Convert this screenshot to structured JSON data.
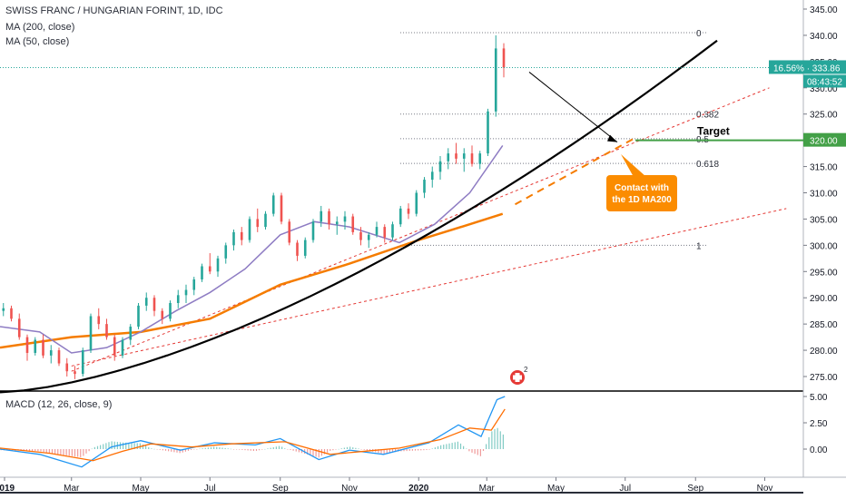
{
  "header": {
    "title": "SWISS FRANC / HUNGARIAN FORINT, 1D, IDC",
    "ma200_label": "MA (200, close)",
    "ma50_label": "MA (50, close)",
    "macd_label": "MACD (12, 26, close, 9)"
  },
  "price_axis": {
    "ticks": [
      "345.00",
      "340.00",
      "335.00",
      "330.00",
      "325.00",
      "320.00",
      "315.00",
      "310.00",
      "305.00",
      "300.00",
      "295.00",
      "290.00",
      "285.00",
      "280.00",
      "275.00"
    ],
    "last_price_badge": "16.56% · 333.86",
    "countdown_badge": "08:43:52",
    "target_badge": "320.00"
  },
  "macd_axis": {
    "ticks": [
      "5.00",
      "2.50",
      "0.00"
    ]
  },
  "time_axis": {
    "labels": [
      "2019",
      "Mar",
      "May",
      "Jul",
      "Sep",
      "Nov",
      "2020",
      "Mar",
      "May",
      "Jul",
      "Sep",
      "Nov"
    ]
  },
  "fib_levels": [
    {
      "label": "0",
      "value": 340.5
    },
    {
      "label": "0.382",
      "value": 325.0
    },
    {
      "label": "0.5",
      "value": 320.3
    },
    {
      "label": "0.618",
      "value": 315.6
    },
    {
      "label": "1",
      "value": 300.0
    }
  ],
  "annotations": {
    "target_label": "Target",
    "callout_text": [
      "Contact with",
      "the 1D MA200"
    ],
    "event_badge": "2"
  },
  "colors": {
    "up": "#26a69a",
    "down": "#ef5350",
    "ma200": "#f57c00",
    "ma50": "#8e7cc3",
    "curve": "#000000",
    "channel": "#e53935",
    "target": "#43a047",
    "callout": "#fb8c00",
    "last_price": "#26a69a",
    "macd": "#2196f3",
    "signal": "#ff6d00"
  },
  "chart_data": {
    "type": "candlestick",
    "y_range": [
      272,
      347
    ],
    "x_range": [
      "2018-12-28",
      "2020-12-05"
    ],
    "series": [
      {
        "name": "MA (200, close)",
        "points": [
          [
            "2018-12-28",
            280.5
          ],
          [
            "2019-03-01",
            282.5
          ],
          [
            "2019-05-01",
            283.5
          ],
          [
            "2019-07-01",
            286.0
          ],
          [
            "2019-09-01",
            292.5
          ],
          [
            "2019-11-01",
            296.5
          ],
          [
            "2020-01-01",
            301.0
          ],
          [
            "2020-02-15",
            304.0
          ],
          [
            "2020-03-15",
            306.0
          ]
        ]
      },
      {
        "name": "MA (50, close)",
        "points": [
          [
            "2018-12-28",
            284.5
          ],
          [
            "2019-02-01",
            283.5
          ],
          [
            "2019-03-01",
            279.5
          ],
          [
            "2019-04-01",
            280.5
          ],
          [
            "2019-05-01",
            283.5
          ],
          [
            "2019-06-01",
            287.5
          ],
          [
            "2019-07-01",
            291.0
          ],
          [
            "2019-08-01",
            295.5
          ],
          [
            "2019-09-01",
            302.0
          ],
          [
            "2019-10-01",
            304.5
          ],
          [
            "2019-11-01",
            303.5
          ],
          [
            "2019-12-15",
            300.5
          ],
          [
            "2020-01-15",
            304.0
          ],
          [
            "2020-02-15",
            310.0
          ],
          [
            "2020-03-15",
            319.0
          ]
        ]
      }
    ],
    "candles": [
      [
        "2018-12-31",
        287.5,
        289.0,
        286.5,
        288.0
      ],
      [
        "2019-01-07",
        288.0,
        288.5,
        285.5,
        286.0
      ],
      [
        "2019-01-14",
        286.0,
        287.0,
        282.0,
        282.5
      ],
      [
        "2019-01-21",
        282.5,
        283.0,
        278.0,
        279.5
      ],
      [
        "2019-01-28",
        279.5,
        282.5,
        279.0,
        282.0
      ],
      [
        "2019-02-04",
        282.0,
        283.0,
        278.5,
        279.0
      ],
      [
        "2019-02-11",
        279.0,
        281.0,
        277.5,
        280.0
      ],
      [
        "2019-02-18",
        280.0,
        280.5,
        277.0,
        277.5
      ],
      [
        "2019-02-25",
        277.5,
        278.5,
        275.0,
        276.0
      ],
      [
        "2019-03-04",
        276.0,
        277.0,
        274.5,
        275.5
      ],
      [
        "2019-03-11",
        275.5,
        280.5,
        275.0,
        280.0
      ],
      [
        "2019-03-18",
        280.0,
        287.0,
        279.5,
        286.5
      ],
      [
        "2019-03-25",
        286.5,
        288.0,
        284.0,
        285.0
      ],
      [
        "2019-04-01",
        285.0,
        286.0,
        282.0,
        282.5
      ],
      [
        "2019-04-08",
        282.5,
        283.0,
        278.0,
        279.0
      ],
      [
        "2019-04-15",
        279.0,
        282.5,
        278.5,
        282.0
      ],
      [
        "2019-04-22",
        282.0,
        285.0,
        281.0,
        284.5
      ],
      [
        "2019-04-29",
        284.5,
        289.0,
        284.0,
        288.5
      ],
      [
        "2019-05-06",
        288.5,
        291.0,
        287.5,
        290.0
      ],
      [
        "2019-05-13",
        290.0,
        290.5,
        286.5,
        287.5
      ],
      [
        "2019-05-20",
        287.5,
        288.0,
        285.0,
        286.0
      ],
      [
        "2019-05-27",
        286.0,
        289.5,
        285.5,
        289.0
      ],
      [
        "2019-06-03",
        289.0,
        291.5,
        288.0,
        290.5
      ],
      [
        "2019-06-10",
        290.5,
        292.5,
        289.0,
        291.5
      ],
      [
        "2019-06-17",
        291.5,
        294.0,
        290.5,
        293.5
      ],
      [
        "2019-06-24",
        293.5,
        296.5,
        293.0,
        296.0
      ],
      [
        "2019-07-01",
        296.0,
        298.5,
        294.5,
        295.0
      ],
      [
        "2019-07-08",
        295.0,
        298.0,
        294.0,
        297.5
      ],
      [
        "2019-07-15",
        297.5,
        300.5,
        296.5,
        300.0
      ],
      [
        "2019-07-22",
        300.0,
        303.0,
        299.0,
        302.5
      ],
      [
        "2019-07-29",
        302.5,
        303.5,
        300.0,
        301.0
      ],
      [
        "2019-08-05",
        301.0,
        305.5,
        300.5,
        305.0
      ],
      [
        "2019-08-12",
        305.0,
        307.0,
        302.5,
        303.5
      ],
      [
        "2019-08-19",
        303.5,
        306.5,
        303.0,
        306.0
      ],
      [
        "2019-08-26",
        306.0,
        310.0,
        305.5,
        309.5
      ],
      [
        "2019-09-02",
        309.5,
        310.0,
        304.0,
        304.5
      ],
      [
        "2019-09-09",
        304.5,
        305.0,
        300.0,
        300.5
      ],
      [
        "2019-09-16",
        300.5,
        301.0,
        297.0,
        298.0
      ],
      [
        "2019-09-23",
        298.0,
        301.5,
        297.5,
        301.0
      ],
      [
        "2019-09-30",
        301.0,
        305.0,
        300.5,
        304.5
      ],
      [
        "2019-10-07",
        304.5,
        307.5,
        303.5,
        306.5
      ],
      [
        "2019-10-14",
        306.5,
        307.0,
        303.0,
        304.0
      ],
      [
        "2019-10-21",
        304.0,
        305.5,
        302.0,
        304.5
      ],
      [
        "2019-10-28",
        304.5,
        306.5,
        303.0,
        305.5
      ],
      [
        "2019-11-04",
        305.5,
        306.0,
        302.0,
        302.5
      ],
      [
        "2019-11-11",
        302.5,
        303.5,
        300.0,
        301.0
      ],
      [
        "2019-11-18",
        301.0,
        302.5,
        299.5,
        302.0
      ],
      [
        "2019-11-25",
        302.0,
        304.5,
        301.5,
        303.5
      ],
      [
        "2019-12-02",
        303.5,
        304.0,
        300.5,
        301.5
      ],
      [
        "2019-12-09",
        301.5,
        304.5,
        301.0,
        304.0
      ],
      [
        "2019-12-16",
        304.0,
        307.5,
        303.5,
        307.0
      ],
      [
        "2019-12-23",
        307.0,
        308.0,
        305.0,
        306.0
      ],
      [
        "2019-12-30",
        306.0,
        310.5,
        305.5,
        310.0
      ],
      [
        "2020-01-06",
        310.0,
        313.0,
        309.0,
        312.5
      ],
      [
        "2020-01-13",
        312.5,
        315.0,
        311.0,
        314.0
      ],
      [
        "2020-01-20",
        314.0,
        317.0,
        312.5,
        316.0
      ],
      [
        "2020-01-27",
        316.0,
        318.5,
        314.5,
        317.5
      ],
      [
        "2020-02-03",
        317.5,
        319.5,
        315.5,
        316.5
      ],
      [
        "2020-02-10",
        316.5,
        318.5,
        314.0,
        317.5
      ],
      [
        "2020-02-17",
        317.5,
        319.0,
        315.0,
        315.5
      ],
      [
        "2020-02-24",
        315.5,
        318.0,
        314.5,
        317.5
      ],
      [
        "2020-03-02",
        317.5,
        326.0,
        317.0,
        325.5
      ],
      [
        "2020-03-09",
        325.5,
        340.0,
        324.5,
        337.5
      ],
      [
        "2020-03-16",
        337.5,
        338.5,
        332.0,
        333.86
      ]
    ],
    "macd": {
      "series": [
        {
          "name": "MACD",
          "points": [
            [
              "2018-12-28",
              0.0
            ],
            [
              "2019-02-01",
              -0.5
            ],
            [
              "2019-03-10",
              -1.7
            ],
            [
              "2019-04-05",
              0.2
            ],
            [
              "2019-05-01",
              0.8
            ],
            [
              "2019-06-05",
              -0.1
            ],
            [
              "2019-07-05",
              0.6
            ],
            [
              "2019-08-10",
              0.4
            ],
            [
              "2019-09-01",
              1.0
            ],
            [
              "2019-10-05",
              -1.0
            ],
            [
              "2019-11-01",
              -0.1
            ],
            [
              "2019-12-01",
              -0.5
            ],
            [
              "2020-01-10",
              0.6
            ],
            [
              "2020-02-05",
              2.3
            ],
            [
              "2020-02-25",
              1.2
            ],
            [
              "2020-03-10",
              4.7
            ],
            [
              "2020-03-17",
              5.0
            ]
          ]
        },
        {
          "name": "Signal",
          "points": [
            [
              "2018-12-28",
              0.1
            ],
            [
              "2019-02-10",
              -0.4
            ],
            [
              "2019-03-20",
              -1.1
            ],
            [
              "2019-04-15",
              -0.2
            ],
            [
              "2019-05-10",
              0.5
            ],
            [
              "2019-06-15",
              0.2
            ],
            [
              "2019-07-20",
              0.5
            ],
            [
              "2019-09-05",
              0.7
            ],
            [
              "2019-10-15",
              -0.5
            ],
            [
              "2019-11-15",
              -0.2
            ],
            [
              "2019-12-15",
              0.1
            ],
            [
              "2020-01-20",
              0.9
            ],
            [
              "2020-02-15",
              2.0
            ],
            [
              "2020-03-05",
              1.8
            ],
            [
              "2020-03-17",
              3.8
            ]
          ]
        }
      ]
    }
  }
}
